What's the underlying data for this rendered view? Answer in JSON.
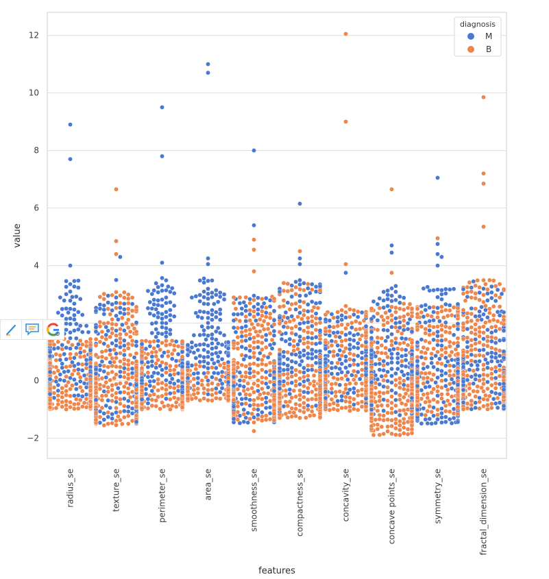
{
  "chart_data": {
    "type": "swarm",
    "title": "",
    "xlabel": "features",
    "ylabel": "value",
    "ylim": [
      -2.7,
      12.8
    ],
    "yticks": [
      -2,
      0,
      2,
      4,
      6,
      8,
      10,
      12
    ],
    "ytick_labels": [
      "−2",
      "0",
      "2",
      "4",
      "6",
      "8",
      "10",
      "12"
    ],
    "grid": true,
    "categories": [
      "radius_se",
      "texture_se",
      "perimeter_se",
      "area_se",
      "smoothness_se",
      "compactness_se",
      "concavity_se",
      "concave points_se",
      "symmetry_se",
      "fractal_dimension_se"
    ],
    "legend": {
      "title": "diagnosis",
      "placement": "top-right",
      "entries": [
        {
          "label": "M",
          "color": "#4878d0"
        },
        {
          "label": "B",
          "color": "#ee854a"
        }
      ]
    },
    "series": [
      {
        "name": "M",
        "color": "#4878d0",
        "distribution": [
          {
            "feature": "radius_se",
            "count": 212,
            "min": -0.9,
            "q1": -0.1,
            "median": 0.5,
            "q3": 1.3,
            "max": 3.5
          },
          {
            "feature": "texture_se",
            "count": 212,
            "min": -1.5,
            "q1": -0.7,
            "median": -0.1,
            "q3": 0.5,
            "max": 3.0
          },
          {
            "feature": "perimeter_se",
            "count": 212,
            "min": -0.8,
            "q1": -0.1,
            "median": 0.5,
            "q3": 1.3,
            "max": 3.6
          },
          {
            "feature": "area_se",
            "count": 212,
            "min": -0.6,
            "q1": 0.0,
            "median": 0.6,
            "q3": 1.4,
            "max": 3.5
          },
          {
            "feature": "smoothness_se",
            "count": 212,
            "min": -1.5,
            "q1": -0.6,
            "median": -0.1,
            "q3": 0.5,
            "max": 3.0
          },
          {
            "feature": "compactness_se",
            "count": 212,
            "min": -1.1,
            "q1": -0.3,
            "median": 0.4,
            "q3": 1.0,
            "max": 3.5
          },
          {
            "feature": "concavity_se",
            "count": 212,
            "min": -0.9,
            "q1": -0.2,
            "median": 0.3,
            "q3": 0.9,
            "max": 2.4
          },
          {
            "feature": "concave points_se",
            "count": 212,
            "min": -1.2,
            "q1": 0.0,
            "median": 0.5,
            "q3": 1.1,
            "max": 3.3
          },
          {
            "feature": "symmetry_se",
            "count": 212,
            "min": -1.5,
            "q1": -0.5,
            "median": 0.1,
            "q3": 0.8,
            "max": 3.3
          },
          {
            "feature": "fractal_dimension_se",
            "count": 212,
            "min": -1.0,
            "q1": -0.3,
            "median": 0.3,
            "q3": 1.0,
            "max": 3.3
          }
        ],
        "outliers": [
          {
            "feature": "radius_se",
            "values": [
              8.9,
              7.7,
              4.0
            ]
          },
          {
            "feature": "texture_se",
            "values": [
              4.3,
              3.5
            ]
          },
          {
            "feature": "perimeter_se",
            "values": [
              9.5,
              7.8,
              4.1
            ]
          },
          {
            "feature": "area_se",
            "values": [
              11.0,
              10.7,
              4.25,
              4.05,
              3.55
            ]
          },
          {
            "feature": "smoothness_se",
            "values": [
              8.0,
              5.4
            ]
          },
          {
            "feature": "compactness_se",
            "values": [
              6.15,
              4.25,
              4.05
            ]
          },
          {
            "feature": "concavity_se",
            "values": [
              3.75
            ]
          },
          {
            "feature": "concave points_se",
            "values": [
              4.7,
              4.45
            ]
          },
          {
            "feature": "symmetry_se",
            "values": [
              7.05,
              4.75,
              4.4,
              4.3,
              4.0
            ]
          },
          {
            "feature": "fractal_dimension_se",
            "values": [
              3.45
            ]
          }
        ]
      },
      {
        "name": "B",
        "color": "#ee854a",
        "distribution": [
          {
            "feature": "radius_se",
            "count": 357,
            "min": -1.0,
            "q1": -0.8,
            "median": -0.5,
            "q3": -0.1,
            "max": 1.5
          },
          {
            "feature": "texture_se",
            "count": 357,
            "min": -1.55,
            "q1": -0.6,
            "median": -0.1,
            "q3": 0.6,
            "max": 3.1
          },
          {
            "feature": "perimeter_se",
            "count": 357,
            "min": -1.0,
            "q1": -0.8,
            "median": -0.5,
            "q3": -0.1,
            "max": 1.4
          },
          {
            "feature": "area_se",
            "count": 357,
            "min": -0.7,
            "q1": -0.6,
            "median": -0.45,
            "q3": -0.25,
            "max": 0.6
          },
          {
            "feature": "smoothness_se",
            "count": 357,
            "min": -1.45,
            "q1": -0.5,
            "median": 0.0,
            "q3": 0.6,
            "max": 3.0
          },
          {
            "feature": "compactness_se",
            "count": 357,
            "min": -1.3,
            "q1": -0.7,
            "median": -0.3,
            "q3": 0.2,
            "max": 3.4
          },
          {
            "feature": "concavity_se",
            "count": 357,
            "min": -1.05,
            "q1": -0.7,
            "median": -0.3,
            "q3": 0.2,
            "max": 2.6
          },
          {
            "feature": "concave points_se",
            "count": 357,
            "min": -1.9,
            "q1": -0.9,
            "median": -0.4,
            "q3": 0.2,
            "max": 2.8
          },
          {
            "feature": "symmetry_se",
            "count": 357,
            "min": -1.2,
            "q1": -0.6,
            "median": -0.2,
            "q3": 0.4,
            "max": 2.6
          },
          {
            "feature": "fractal_dimension_se",
            "count": 357,
            "min": -1.0,
            "q1": -0.6,
            "median": -0.2,
            "q3": 0.4,
            "max": 3.5
          }
        ],
        "outliers": [
          {
            "feature": "texture_se",
            "values": [
              6.65,
              4.85,
              4.4
            ]
          },
          {
            "feature": "smoothness_se",
            "values": [
              4.9,
              4.55,
              3.8,
              -1.75
            ]
          },
          {
            "feature": "compactness_se",
            "values": [
              4.5
            ]
          },
          {
            "feature": "concavity_se",
            "values": [
              12.05,
              9.0,
              4.05
            ]
          },
          {
            "feature": "concave points_se",
            "values": [
              6.65,
              3.75
            ]
          },
          {
            "feature": "symmetry_se",
            "values": [
              4.95
            ]
          },
          {
            "feature": "fractal_dimension_se",
            "values": [
              9.85,
              7.2,
              6.85,
              5.35
            ]
          }
        ]
      }
    ]
  },
  "toolbar": {
    "items": [
      {
        "name": "pen-icon"
      },
      {
        "name": "comment-icon"
      },
      {
        "name": "google-search-icon"
      }
    ]
  }
}
